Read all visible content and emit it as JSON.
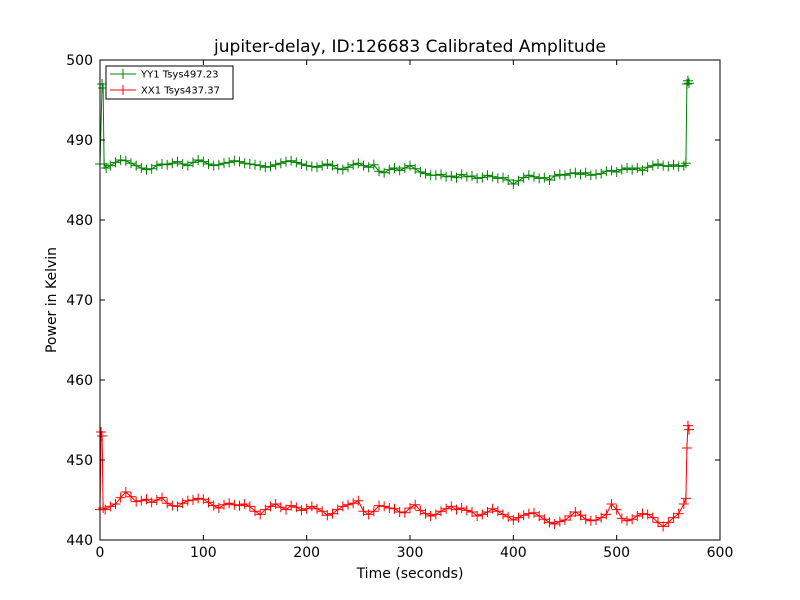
{
  "chart_data": {
    "type": "line",
    "title": "jupiter-delay, ID:126683 Calibrated Amplitude",
    "xlabel": "Time (seconds)",
    "ylabel": "Power in Kelvin",
    "xlim": [
      0,
      600
    ],
    "ylim": [
      440,
      500
    ],
    "xticks": [
      0,
      100,
      200,
      300,
      400,
      500,
      600
    ],
    "yticks": [
      440,
      450,
      460,
      470,
      480,
      490,
      500
    ],
    "grid": false,
    "legend_position": "top-left",
    "marker": "plus",
    "series": [
      {
        "name": "YY1 Tsys497.23",
        "color": "#008000",
        "x": [
          0,
          2,
          3,
          4,
          6,
          10,
          15,
          20,
          25,
          30,
          35,
          40,
          45,
          50,
          55,
          60,
          65,
          70,
          75,
          80,
          85,
          90,
          95,
          100,
          105,
          110,
          115,
          120,
          125,
          130,
          135,
          140,
          145,
          150,
          155,
          160,
          165,
          170,
          175,
          180,
          185,
          190,
          195,
          200,
          205,
          210,
          215,
          220,
          225,
          230,
          235,
          240,
          245,
          250,
          255,
          260,
          265,
          270,
          275,
          280,
          285,
          290,
          295,
          300,
          305,
          310,
          315,
          320,
          325,
          330,
          335,
          340,
          345,
          350,
          355,
          360,
          365,
          370,
          375,
          380,
          385,
          390,
          395,
          400,
          405,
          410,
          415,
          420,
          425,
          430,
          435,
          440,
          445,
          450,
          455,
          460,
          465,
          470,
          475,
          480,
          485,
          490,
          495,
          500,
          505,
          510,
          515,
          520,
          525,
          530,
          535,
          540,
          545,
          550,
          555,
          560,
          565,
          567,
          568,
          569,
          570
        ],
        "values": [
          487.0,
          497.0,
          496.5,
          487.0,
          486.5,
          486.8,
          487.2,
          487.5,
          487.4,
          487.1,
          486.8,
          486.5,
          486.3,
          486.4,
          486.8,
          487.0,
          486.9,
          487.1,
          487.3,
          487.0,
          486.8,
          487.2,
          487.5,
          487.3,
          487.0,
          486.8,
          486.9,
          487.1,
          487.2,
          487.4,
          487.3,
          487.1,
          487.0,
          486.9,
          486.8,
          486.6,
          486.7,
          486.9,
          487.1,
          487.3,
          487.4,
          487.2,
          487.0,
          486.8,
          486.7,
          486.6,
          486.8,
          487.0,
          486.8,
          486.4,
          486.3,
          486.6,
          486.9,
          487.1,
          486.8,
          486.6,
          486.9,
          486.1,
          485.9,
          486.3,
          486.5,
          486.2,
          486.5,
          486.8,
          486.4,
          486.0,
          485.8,
          485.6,
          485.6,
          485.7,
          485.4,
          485.5,
          485.3,
          485.7,
          485.4,
          485.5,
          485.2,
          485.3,
          485.6,
          485.4,
          485.2,
          485.3,
          485.0,
          484.5,
          484.9,
          485.3,
          485.6,
          485.4,
          485.2,
          485.3,
          485.0,
          485.5,
          485.7,
          485.6,
          485.8,
          485.9,
          485.7,
          485.9,
          485.6,
          485.7,
          485.8,
          486.1,
          486.2,
          486.0,
          486.3,
          486.5,
          486.3,
          486.5,
          486.2,
          486.6,
          486.8,
          487.0,
          486.8,
          486.7,
          486.9,
          486.7,
          486.8,
          487.1,
          497.0,
          497.4,
          497.1
        ]
      },
      {
        "name": "XX1 Tsys437.37",
        "color": "#ff0000",
        "x": [
          0,
          1,
          2,
          3,
          5,
          10,
          15,
          20,
          25,
          30,
          35,
          40,
          45,
          50,
          55,
          60,
          65,
          70,
          75,
          80,
          85,
          90,
          95,
          100,
          105,
          110,
          115,
          120,
          125,
          130,
          135,
          140,
          145,
          150,
          155,
          160,
          165,
          170,
          175,
          180,
          185,
          190,
          195,
          200,
          205,
          210,
          215,
          220,
          225,
          230,
          235,
          240,
          245,
          250,
          255,
          260,
          265,
          270,
          275,
          280,
          285,
          290,
          295,
          300,
          305,
          310,
          315,
          320,
          325,
          330,
          335,
          340,
          345,
          350,
          355,
          360,
          365,
          370,
          375,
          380,
          385,
          390,
          395,
          400,
          405,
          410,
          415,
          420,
          425,
          430,
          435,
          440,
          445,
          450,
          455,
          460,
          465,
          470,
          475,
          480,
          485,
          490,
          495,
          500,
          505,
          510,
          515,
          520,
          525,
          530,
          535,
          540,
          545,
          550,
          555,
          560,
          565,
          567,
          568,
          569,
          570
        ],
        "values": [
          443.8,
          453.5,
          453.0,
          444.0,
          443.8,
          444.2,
          444.5,
          445.3,
          446.0,
          445.4,
          444.8,
          444.9,
          445.1,
          444.7,
          445.0,
          445.3,
          444.6,
          444.3,
          444.2,
          444.6,
          444.9,
          445.0,
          445.2,
          445.1,
          444.7,
          444.3,
          444.0,
          444.4,
          444.6,
          444.4,
          444.3,
          444.5,
          444.2,
          443.6,
          443.2,
          443.8,
          444.2,
          444.5,
          444.1,
          443.8,
          444.3,
          444.1,
          443.7,
          443.9,
          444.2,
          443.9,
          443.6,
          443.1,
          443.3,
          443.8,
          444.2,
          444.4,
          444.6,
          444.9,
          443.6,
          443.2,
          443.6,
          444.3,
          444.2,
          444.0,
          443.9,
          443.5,
          443.4,
          444.0,
          444.4,
          443.7,
          443.3,
          443.0,
          443.2,
          443.6,
          443.9,
          444.2,
          443.8,
          444.0,
          443.7,
          443.5,
          443.0,
          443.2,
          443.5,
          443.9,
          443.6,
          443.2,
          442.9,
          442.5,
          442.8,
          443.1,
          443.3,
          443.4,
          443.0,
          442.6,
          442.2,
          442.0,
          442.3,
          442.5,
          443.0,
          443.5,
          443.1,
          442.6,
          442.4,
          442.5,
          442.8,
          443.2,
          444.5,
          443.8,
          442.7,
          442.4,
          442.6,
          443.0,
          443.3,
          443.2,
          442.8,
          442.2,
          441.7,
          442.2,
          442.8,
          443.3,
          444.5,
          445.2,
          451.5,
          454.3,
          453.8
        ]
      }
    ]
  }
}
